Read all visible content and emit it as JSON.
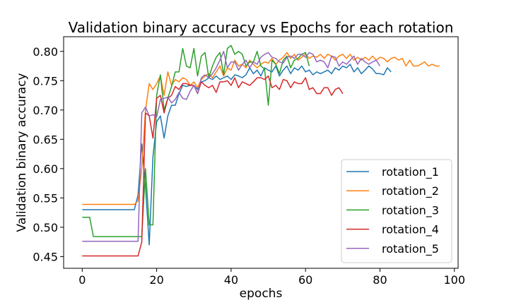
{
  "chart_data": {
    "type": "line",
    "title": "Validation binary accuracy vs Epochs for each rotation",
    "xlabel": "epochs",
    "ylabel": "Validation binary accuracy",
    "xlim": [
      -5,
      101
    ],
    "ylim": [
      0.43,
      0.825
    ],
    "xticks": [
      0,
      20,
      40,
      60,
      80,
      100
    ],
    "xtick_labels": [
      "0",
      "20",
      "40",
      "60",
      "80",
      "100"
    ],
    "yticks": [
      0.45,
      0.5,
      0.55,
      0.6,
      0.65,
      0.7,
      0.75,
      0.8
    ],
    "ytick_labels": [
      "0.45",
      "0.50",
      "0.55",
      "0.60",
      "0.65",
      "0.70",
      "0.75",
      "0.80"
    ],
    "grid": false,
    "legend_position": "lower-right",
    "series": [
      {
        "name": "rotation_1",
        "color": "#1f77b4",
        "values": [
          0.53,
          0.53,
          0.53,
          0.53,
          0.53,
          0.53,
          0.53,
          0.53,
          0.53,
          0.53,
          0.53,
          0.53,
          0.53,
          0.53,
          0.53,
          0.555,
          0.642,
          0.57,
          0.47,
          0.62,
          0.68,
          0.69,
          0.652,
          0.69,
          0.708,
          0.708,
          0.728,
          0.742,
          0.74,
          0.742,
          0.742,
          0.735,
          0.748,
          0.75,
          0.755,
          0.752,
          0.758,
          0.752,
          0.755,
          0.758,
          0.752,
          0.76,
          0.758,
          0.755,
          0.76,
          0.772,
          0.762,
          0.768,
          0.758,
          0.772,
          0.768,
          0.765,
          0.775,
          0.758,
          0.768,
          0.775,
          0.762,
          0.772,
          0.768,
          0.775,
          0.765,
          0.768,
          0.76,
          0.765,
          0.762,
          0.765,
          0.768,
          0.762,
          0.772,
          0.768,
          0.775,
          0.772,
          0.778,
          0.765,
          0.772,
          0.762,
          0.768,
          0.775,
          0.77,
          0.762,
          0.762,
          0.76,
          0.772,
          0.765
        ]
      },
      {
        "name": "rotation_2",
        "color": "#ff7f0e",
        "values": [
          0.539,
          0.539,
          0.539,
          0.539,
          0.539,
          0.539,
          0.539,
          0.539,
          0.539,
          0.539,
          0.539,
          0.539,
          0.539,
          0.539,
          0.539,
          0.545,
          0.6,
          0.7,
          0.745,
          0.735,
          0.745,
          0.758,
          0.725,
          0.765,
          0.742,
          0.752,
          0.748,
          0.755,
          0.752,
          0.742,
          0.748,
          0.738,
          0.752,
          0.758,
          0.762,
          0.755,
          0.765,
          0.775,
          0.758,
          0.772,
          0.768,
          0.785,
          0.775,
          0.778,
          0.772,
          0.785,
          0.778,
          0.772,
          0.778,
          0.782,
          0.78,
          0.788,
          0.778,
          0.785,
          0.79,
          0.798,
          0.788,
          0.795,
          0.785,
          0.79,
          0.795,
          0.788,
          0.792,
          0.79,
          0.795,
          0.788,
          0.795,
          0.792,
          0.785,
          0.792,
          0.795,
          0.788,
          0.795,
          0.785,
          0.79,
          0.785,
          0.79,
          0.785,
          0.792,
          0.785,
          0.79,
          0.788,
          0.782,
          0.788,
          0.79,
          0.785,
          0.788,
          0.775,
          0.785,
          0.775,
          0.775,
          0.778,
          0.782,
          0.775,
          0.778,
          0.775,
          0.775
        ]
      },
      {
        "name": "rotation_3",
        "color": "#2ca02c",
        "values": [
          0.517,
          0.517,
          0.517,
          0.484,
          0.484,
          0.484,
          0.484,
          0.484,
          0.484,
          0.484,
          0.484,
          0.484,
          0.484,
          0.484,
          0.484,
          0.484,
          0.484,
          0.6,
          0.504,
          0.504,
          0.725,
          0.76,
          0.7,
          0.72,
          0.74,
          0.765,
          0.765,
          0.805,
          0.775,
          0.772,
          0.805,
          0.758,
          0.792,
          0.798,
          0.755,
          0.775,
          0.79,
          0.798,
          0.76,
          0.805,
          0.81,
          0.795,
          0.8,
          0.795,
          0.775,
          0.782,
          0.782,
          0.8,
          0.775,
          0.77,
          0.708,
          0.785,
          0.778,
          0.762,
          0.785,
          0.792,
          0.772,
          0.785,
          0.788,
          0.795,
          0.798,
          0.775
        ]
      },
      {
        "name": "rotation_4",
        "color": "#d62728",
        "values": [
          0.451,
          0.451,
          0.451,
          0.451,
          0.451,
          0.451,
          0.451,
          0.451,
          0.451,
          0.451,
          0.451,
          0.451,
          0.451,
          0.451,
          0.451,
          0.451,
          0.475,
          0.695,
          0.69,
          0.652,
          0.72,
          0.725,
          0.695,
          0.72,
          0.725,
          0.74,
          0.735,
          0.745,
          0.745,
          0.742,
          0.742,
          0.728,
          0.748,
          0.742,
          0.738,
          0.742,
          0.73,
          0.748,
          0.748,
          0.75,
          0.742,
          0.755,
          0.738,
          0.748,
          0.745,
          0.742,
          0.748,
          0.755,
          0.755,
          0.752,
          0.758,
          0.738,
          0.742,
          0.735,
          0.752,
          0.75,
          0.738,
          0.748,
          0.745,
          0.745,
          0.755,
          0.735,
          0.738,
          0.728,
          0.728,
          0.738,
          0.738,
          0.725,
          0.735,
          0.738,
          0.728
        ]
      },
      {
        "name": "rotation_5",
        "color": "#9467bd",
        "values": [
          0.476,
          0.476,
          0.476,
          0.476,
          0.476,
          0.476,
          0.476,
          0.476,
          0.476,
          0.476,
          0.476,
          0.476,
          0.476,
          0.476,
          0.476,
          0.476,
          0.695,
          0.705,
          0.69,
          0.692,
          0.688,
          0.718,
          0.72,
          0.722,
          0.712,
          0.718,
          0.73,
          0.72,
          0.718,
          0.732,
          0.742,
          0.728,
          0.755,
          0.76,
          0.755,
          0.762,
          0.772,
          0.785,
          0.8,
          0.772,
          0.782,
          0.782,
          0.768,
          0.778,
          0.785,
          0.772,
          0.782,
          0.778,
          0.79,
          0.795,
          0.798,
          0.79,
          0.788,
          0.782,
          0.78,
          0.79,
          0.792,
          0.788,
          0.795,
          0.795,
          0.79,
          0.798,
          0.795,
          0.782,
          0.785,
          0.782,
          0.772,
          0.792,
          0.79,
          0.775,
          0.782,
          0.778,
          0.785,
          0.792,
          0.778,
          0.788,
          0.782,
          0.778,
          0.782,
          0.785,
          0.775
        ]
      }
    ]
  }
}
